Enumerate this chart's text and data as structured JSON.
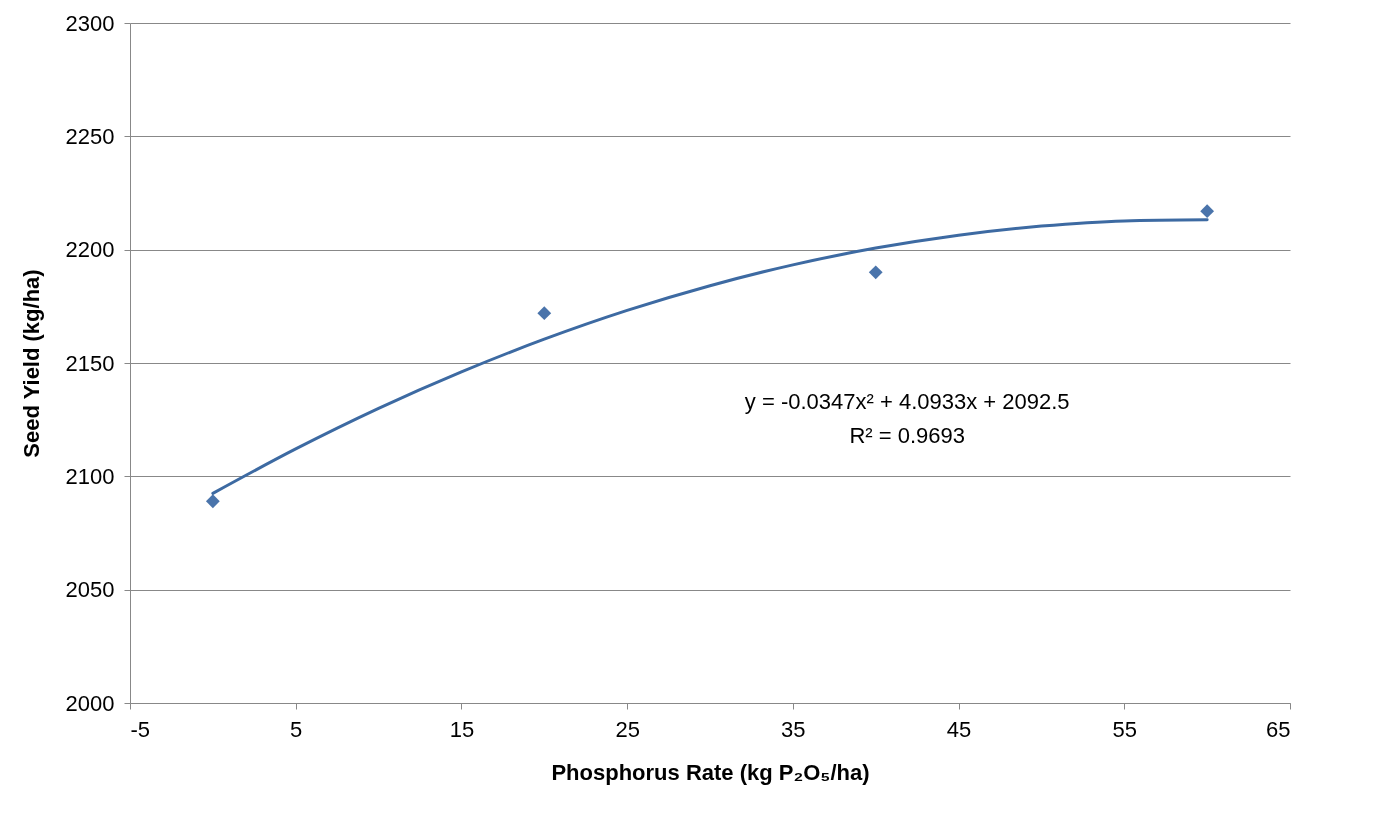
{
  "chart_data": {
    "type": "scatter",
    "xlabel": "Phosphorus Rate (kg P₂O₅/ha)",
    "ylabel": "Seed Yield (kg/ha)",
    "xlim": [
      -5,
      65
    ],
    "xticks": [
      -5,
      5,
      15,
      25,
      35,
      45,
      55,
      65
    ],
    "ylim": [
      2000,
      2300
    ],
    "yticks": [
      2000,
      2050,
      2100,
      2150,
      2200,
      2250,
      2300
    ],
    "grid": "y",
    "marker": "diamond",
    "series": [
      {
        "color": "#4a74ab",
        "x": [
          0,
          20,
          40,
          60
        ],
        "values": [
          2089,
          2172,
          2190,
          2217
        ]
      },
      {
        "type": "line",
        "color": "#3d6aa2",
        "marker": "none",
        "x": [
          0,
          5,
          10,
          15,
          20,
          25,
          30,
          35,
          40,
          45,
          50,
          55,
          60
        ],
        "values": [
          2092.5,
          2112.1,
          2130.0,
          2146.1,
          2160.5,
          2173.2,
          2184.1,
          2193.3,
          2200.7,
          2206.4,
          2210.4,
          2212.7,
          2213.2
        ]
      }
    ],
    "annotations": [
      "y = -0.0347x² + 4.0933x + 2092.5",
      "R² = 0.9693"
    ]
  }
}
